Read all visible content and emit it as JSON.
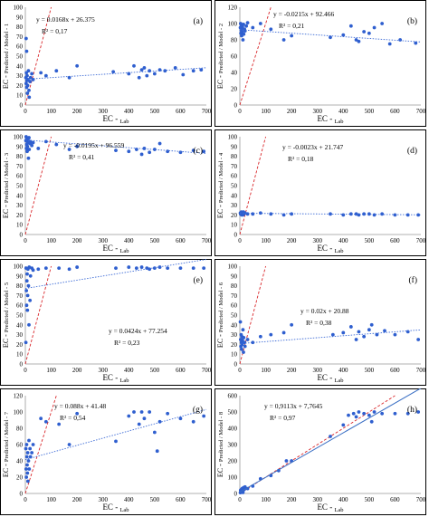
{
  "chart_data": [
    {
      "type": "scatter",
      "panel_label": "(a)",
      "xlabel_main": "EC",
      "xlabel_sub": "Lab",
      "ylabel_main": "EC",
      "ylabel_sub": "Predicted / Model - 1",
      "xlim": [
        0,
        700
      ],
      "ylim": [
        0,
        100
      ],
      "xticks": [
        "0",
        "100",
        "200",
        "300",
        "400",
        "500",
        "600",
        "700"
      ],
      "yticks": [
        "0",
        "10",
        "20",
        "30",
        "40",
        "50",
        "60",
        "70",
        "80",
        "90",
        "100"
      ],
      "equation": "y = 0.0168x + 26.375",
      "r2": "R² = 0,17",
      "points": [
        [
          2,
          28
        ],
        [
          3,
          22
        ],
        [
          4,
          33
        ],
        [
          5,
          18
        ],
        [
          6,
          25
        ],
        [
          7,
          30
        ],
        [
          8,
          12
        ],
        [
          9,
          20
        ],
        [
          10,
          26
        ],
        [
          12,
          35
        ],
        [
          14,
          15
        ],
        [
          15,
          8
        ],
        [
          18,
          24
        ],
        [
          20,
          28
        ],
        [
          25,
          32
        ],
        [
          3,
          68
        ],
        [
          5,
          55
        ],
        [
          30,
          26
        ],
        [
          60,
          33
        ],
        [
          80,
          30
        ],
        [
          120,
          35
        ],
        [
          170,
          28
        ],
        [
          200,
          40
        ],
        [
          340,
          34
        ],
        [
          400,
          32
        ],
        [
          420,
          40
        ],
        [
          440,
          28
        ],
        [
          450,
          36
        ],
        [
          460,
          38
        ],
        [
          470,
          30
        ],
        [
          480,
          35
        ],
        [
          500,
          32
        ],
        [
          520,
          36
        ],
        [
          540,
          35
        ],
        [
          580,
          38
        ],
        [
          610,
          31
        ],
        [
          650,
          35
        ],
        [
          680,
          36
        ]
      ],
      "fit": {
        "slope": 0.0168,
        "intercept": 26.375
      }
    },
    {
      "type": "scatter",
      "panel_label": "(b)",
      "xlabel_main": "EC",
      "xlabel_sub": "Lab",
      "ylabel_main": "EC",
      "ylabel_sub": "Predicted / Model - 2",
      "xlim": [
        0,
        700
      ],
      "ylim": [
        0,
        120
      ],
      "xticks": [
        "0",
        "100",
        "200",
        "300",
        "400",
        "500",
        "600",
        "700"
      ],
      "yticks": [
        "0",
        "20",
        "40",
        "60",
        "80",
        "100",
        "120"
      ],
      "equation": "y = -0.0215x + 92.466",
      "r2": "R² = 0,21",
      "points": [
        [
          2,
          95
        ],
        [
          3,
          100
        ],
        [
          4,
          88
        ],
        [
          5,
          92
        ],
        [
          6,
          98
        ],
        [
          7,
          85
        ],
        [
          8,
          90
        ],
        [
          9,
          94
        ],
        [
          10,
          96
        ],
        [
          12,
          80
        ],
        [
          14,
          99
        ],
        [
          15,
          87
        ],
        [
          18,
          93
        ],
        [
          20,
          91
        ],
        [
          25,
          97
        ],
        [
          30,
          101
        ],
        [
          50,
          95
        ],
        [
          80,
          100
        ],
        [
          120,
          93
        ],
        [
          170,
          80
        ],
        [
          200,
          85
        ],
        [
          350,
          83
        ],
        [
          400,
          86
        ],
        [
          430,
          97
        ],
        [
          450,
          80
        ],
        [
          460,
          78
        ],
        [
          480,
          90
        ],
        [
          500,
          88
        ],
        [
          520,
          95
        ],
        [
          550,
          100
        ],
        [
          580,
          75
        ],
        [
          620,
          80
        ],
        [
          680,
          76
        ]
      ],
      "fit": {
        "slope": -0.0215,
        "intercept": 92.466
      }
    },
    {
      "type": "scatter",
      "panel_label": "(c)",
      "xlabel_main": "EC",
      "xlabel_sub": "Lab",
      "ylabel_main": "EC",
      "ylabel_sub": "Predicted / Model - 3",
      "xlim": [
        0,
        700
      ],
      "ylim": [
        0,
        100
      ],
      "xticks": [
        "0",
        "100",
        "200",
        "300",
        "400",
        "500",
        "600",
        "700"
      ],
      "yticks": [
        "0",
        "10",
        "20",
        "30",
        "40",
        "50",
        "60",
        "70",
        "80",
        "90",
        "100"
      ],
      "equation": "y = -0.0195x + 96.559",
      "r2": "R² = 0,41",
      "points": [
        [
          2,
          96
        ],
        [
          3,
          100
        ],
        [
          4,
          88
        ],
        [
          5,
          92
        ],
        [
          6,
          98
        ],
        [
          7,
          85
        ],
        [
          8,
          90
        ],
        [
          9,
          94
        ],
        [
          10,
          97
        ],
        [
          12,
          78
        ],
        [
          14,
          99
        ],
        [
          15,
          87
        ],
        [
          18,
          93
        ],
        [
          20,
          95
        ],
        [
          25,
          91
        ],
        [
          30,
          94
        ],
        [
          50,
          88
        ],
        [
          80,
          95
        ],
        [
          120,
          92
        ],
        [
          170,
          87
        ],
        [
          200,
          90
        ],
        [
          350,
          86
        ],
        [
          400,
          85
        ],
        [
          430,
          87
        ],
        [
          450,
          82
        ],
        [
          460,
          88
        ],
        [
          480,
          84
        ],
        [
          500,
          87
        ],
        [
          520,
          93
        ],
        [
          550,
          85
        ],
        [
          600,
          84
        ],
        [
          650,
          86
        ],
        [
          690,
          85
        ]
      ],
      "fit": {
        "slope": -0.0195,
        "intercept": 96.559
      }
    },
    {
      "type": "scatter",
      "panel_label": "(d)",
      "xlabel_main": "EC",
      "xlabel_sub": "Lab",
      "ylabel_main": "EC",
      "ylabel_sub": "Predicted / Model - 4",
      "xlim": [
        0,
        700
      ],
      "ylim": [
        0,
        100
      ],
      "xticks": [
        "0",
        "100",
        "200",
        "300",
        "400",
        "500",
        "600",
        "700"
      ],
      "yticks": [
        "0",
        "10",
        "20",
        "30",
        "40",
        "50",
        "60",
        "70",
        "80",
        "90",
        "100"
      ],
      "equation": "y = -0.0023x + 21.747",
      "r2": "R² = 0,18",
      "points": [
        [
          2,
          22
        ],
        [
          3,
          21
        ],
        [
          4,
          22
        ],
        [
          5,
          21
        ],
        [
          6,
          23
        ],
        [
          7,
          20
        ],
        [
          8,
          22
        ],
        [
          9,
          21
        ],
        [
          10,
          22
        ],
        [
          12,
          20
        ],
        [
          14,
          23
        ],
        [
          15,
          21
        ],
        [
          18,
          22
        ],
        [
          20,
          22
        ],
        [
          30,
          21
        ],
        [
          50,
          21
        ],
        [
          80,
          22
        ],
        [
          120,
          21
        ],
        [
          170,
          20
        ],
        [
          200,
          21
        ],
        [
          350,
          21
        ],
        [
          400,
          20
        ],
        [
          430,
          21
        ],
        [
          450,
          21
        ],
        [
          460,
          20
        ],
        [
          480,
          21
        ],
        [
          500,
          21
        ],
        [
          520,
          20
        ],
        [
          550,
          21
        ],
        [
          600,
          20
        ],
        [
          650,
          20
        ],
        [
          690,
          20
        ]
      ],
      "fit": {
        "slope": -0.0023,
        "intercept": 21.747
      }
    },
    {
      "type": "scatter",
      "panel_label": "(e)",
      "xlabel_main": "EC",
      "xlabel_sub": "Lab",
      "ylabel_main": "EC",
      "ylabel_sub": "Predicted / Model - 5",
      "xlim": [
        0,
        700
      ],
      "ylim": [
        0,
        100
      ],
      "xticks": [
        "0",
        "100",
        "200",
        "300",
        "400",
        "500",
        "600",
        "700"
      ],
      "yticks": [
        "0",
        "10",
        "20",
        "30",
        "40",
        "50",
        "60",
        "70",
        "80",
        "90",
        "100"
      ],
      "equation": "y = 0.0424x + 77.254",
      "r2": "R² = 0,23",
      "points": [
        [
          2,
          22
        ],
        [
          3,
          98
        ],
        [
          4,
          75
        ],
        [
          5,
          60
        ],
        [
          6,
          85
        ],
        [
          7,
          92
        ],
        [
          8,
          55
        ],
        [
          9,
          70
        ],
        [
          10,
          97
        ],
        [
          12,
          80
        ],
        [
          14,
          40
        ],
        [
          15,
          99
        ],
        [
          18,
          65
        ],
        [
          20,
          90
        ],
        [
          25,
          98
        ],
        [
          30,
          96
        ],
        [
          50,
          97
        ],
        [
          80,
          98
        ],
        [
          130,
          98
        ],
        [
          170,
          97
        ],
        [
          200,
          99
        ],
        [
          350,
          98
        ],
        [
          400,
          99
        ],
        [
          430,
          98
        ],
        [
          450,
          99
        ],
        [
          470,
          98
        ],
        [
          480,
          97
        ],
        [
          500,
          98
        ],
        [
          520,
          99
        ],
        [
          550,
          98
        ],
        [
          600,
          98
        ],
        [
          650,
          98
        ],
        [
          690,
          98
        ]
      ],
      "fit": {
        "slope": 0.0424,
        "intercept": 77.254
      }
    },
    {
      "type": "scatter",
      "panel_label": "(f)",
      "xlabel_main": "EC",
      "xlabel_sub": "Lab",
      "ylabel_main": "EC",
      "ylabel_sub": "Predicted / Model - 6",
      "xlim": [
        0,
        700
      ],
      "ylim": [
        0,
        100
      ],
      "xticks": [
        "0",
        "100",
        "200",
        "300",
        "400",
        "500",
        "600",
        "700"
      ],
      "yticks": [
        "0",
        "10",
        "20",
        "30",
        "40",
        "50",
        "60",
        "70",
        "80",
        "90",
        "100"
      ],
      "equation": "y = 0.02x + 20.88",
      "r2": "R² = 0,38",
      "points": [
        [
          2,
          43
        ],
        [
          3,
          25
        ],
        [
          4,
          18
        ],
        [
          5,
          30
        ],
        [
          6,
          22
        ],
        [
          7,
          15
        ],
        [
          8,
          28
        ],
        [
          9,
          20
        ],
        [
          10,
          24
        ],
        [
          12,
          35
        ],
        [
          14,
          12
        ],
        [
          15,
          27
        ],
        [
          18,
          22
        ],
        [
          20,
          18
        ],
        [
          30,
          25
        ],
        [
          50,
          22
        ],
        [
          80,
          28
        ],
        [
          120,
          30
        ],
        [
          170,
          32
        ],
        [
          200,
          40
        ],
        [
          360,
          30
        ],
        [
          400,
          32
        ],
        [
          430,
          38
        ],
        [
          450,
          25
        ],
        [
          460,
          33
        ],
        [
          480,
          28
        ],
        [
          500,
          35
        ],
        [
          510,
          40
        ],
        [
          530,
          30
        ],
        [
          560,
          34
        ],
        [
          600,
          30
        ],
        [
          650,
          33
        ],
        [
          690,
          25
        ]
      ],
      "fit": {
        "slope": 0.02,
        "intercept": 20.88
      }
    },
    {
      "type": "scatter",
      "panel_label": "(g)",
      "xlabel_main": "EC",
      "xlabel_sub": "Lab",
      "ylabel_main": "EC",
      "ylabel_sub": "Predicted / Model - 7",
      "xlim": [
        0,
        700
      ],
      "ylim": [
        0,
        120
      ],
      "xticks": [
        "0",
        "100",
        "200",
        "300",
        "400",
        "500",
        "600",
        "700"
      ],
      "yticks": [
        "0",
        "20",
        "40",
        "60",
        "80",
        "100",
        "120"
      ],
      "equation": "y = 0.088x + 41.48",
      "r2": "R² = 0,54",
      "points": [
        [
          2,
          55
        ],
        [
          3,
          30
        ],
        [
          4,
          20
        ],
        [
          5,
          60
        ],
        [
          6,
          45
        ],
        [
          7,
          35
        ],
        [
          8,
          25
        ],
        [
          9,
          50
        ],
        [
          10,
          15
        ],
        [
          12,
          40
        ],
        [
          14,
          65
        ],
        [
          15,
          30
        ],
        [
          18,
          55
        ],
        [
          20,
          45
        ],
        [
          25,
          50
        ],
        [
          30,
          60
        ],
        [
          60,
          92
        ],
        [
          80,
          88
        ],
        [
          130,
          85
        ],
        [
          170,
          60
        ],
        [
          200,
          98
        ],
        [
          350,
          64
        ],
        [
          400,
          95
        ],
        [
          420,
          100
        ],
        [
          440,
          85
        ],
        [
          450,
          100
        ],
        [
          460,
          92
        ],
        [
          480,
          100
        ],
        [
          500,
          75
        ],
        [
          510,
          52
        ],
        [
          520,
          88
        ],
        [
          550,
          98
        ],
        [
          600,
          92
        ],
        [
          650,
          88
        ],
        [
          690,
          95
        ]
      ],
      "fit": {
        "slope": 0.088,
        "intercept": 41.48
      }
    },
    {
      "type": "scatter",
      "panel_label": "(h)",
      "xlabel_main": "EC",
      "xlabel_sub": "Lab",
      "ylabel_main": "EC",
      "ylabel_sub": "Predicted / Model - 8",
      "xlim": [
        0,
        700
      ],
      "ylim": [
        0,
        600
      ],
      "xticks": [
        "0",
        "100",
        "200",
        "300",
        "400",
        "500",
        "600",
        "700"
      ],
      "yticks": [
        "0",
        "100",
        "200",
        "300",
        "400",
        "500",
        "600"
      ],
      "equation": "y = 0,9113x + 7,7645",
      "r2": "R² = 0,97",
      "points": [
        [
          2,
          5
        ],
        [
          3,
          20
        ],
        [
          4,
          10
        ],
        [
          5,
          15
        ],
        [
          6,
          8
        ],
        [
          7,
          25
        ],
        [
          8,
          12
        ],
        [
          9,
          30
        ],
        [
          10,
          18
        ],
        [
          12,
          6
        ],
        [
          14,
          35
        ],
        [
          15,
          22
        ],
        [
          18,
          28
        ],
        [
          20,
          40
        ],
        [
          30,
          30
        ],
        [
          50,
          45
        ],
        [
          80,
          90
        ],
        [
          120,
          110
        ],
        [
          150,
          140
        ],
        [
          180,
          200
        ],
        [
          200,
          200
        ],
        [
          350,
          350
        ],
        [
          400,
          420
        ],
        [
          420,
          480
        ],
        [
          440,
          490
        ],
        [
          450,
          470
        ],
        [
          460,
          500
        ],
        [
          480,
          490
        ],
        [
          500,
          480
        ],
        [
          510,
          440
        ],
        [
          520,
          500
        ],
        [
          550,
          490
        ],
        [
          600,
          490
        ],
        [
          650,
          490
        ],
        [
          690,
          500
        ]
      ],
      "fit": {
        "slope": 0.9113,
        "intercept": 7.7645
      },
      "fit_color": "#3a6fc4"
    }
  ]
}
